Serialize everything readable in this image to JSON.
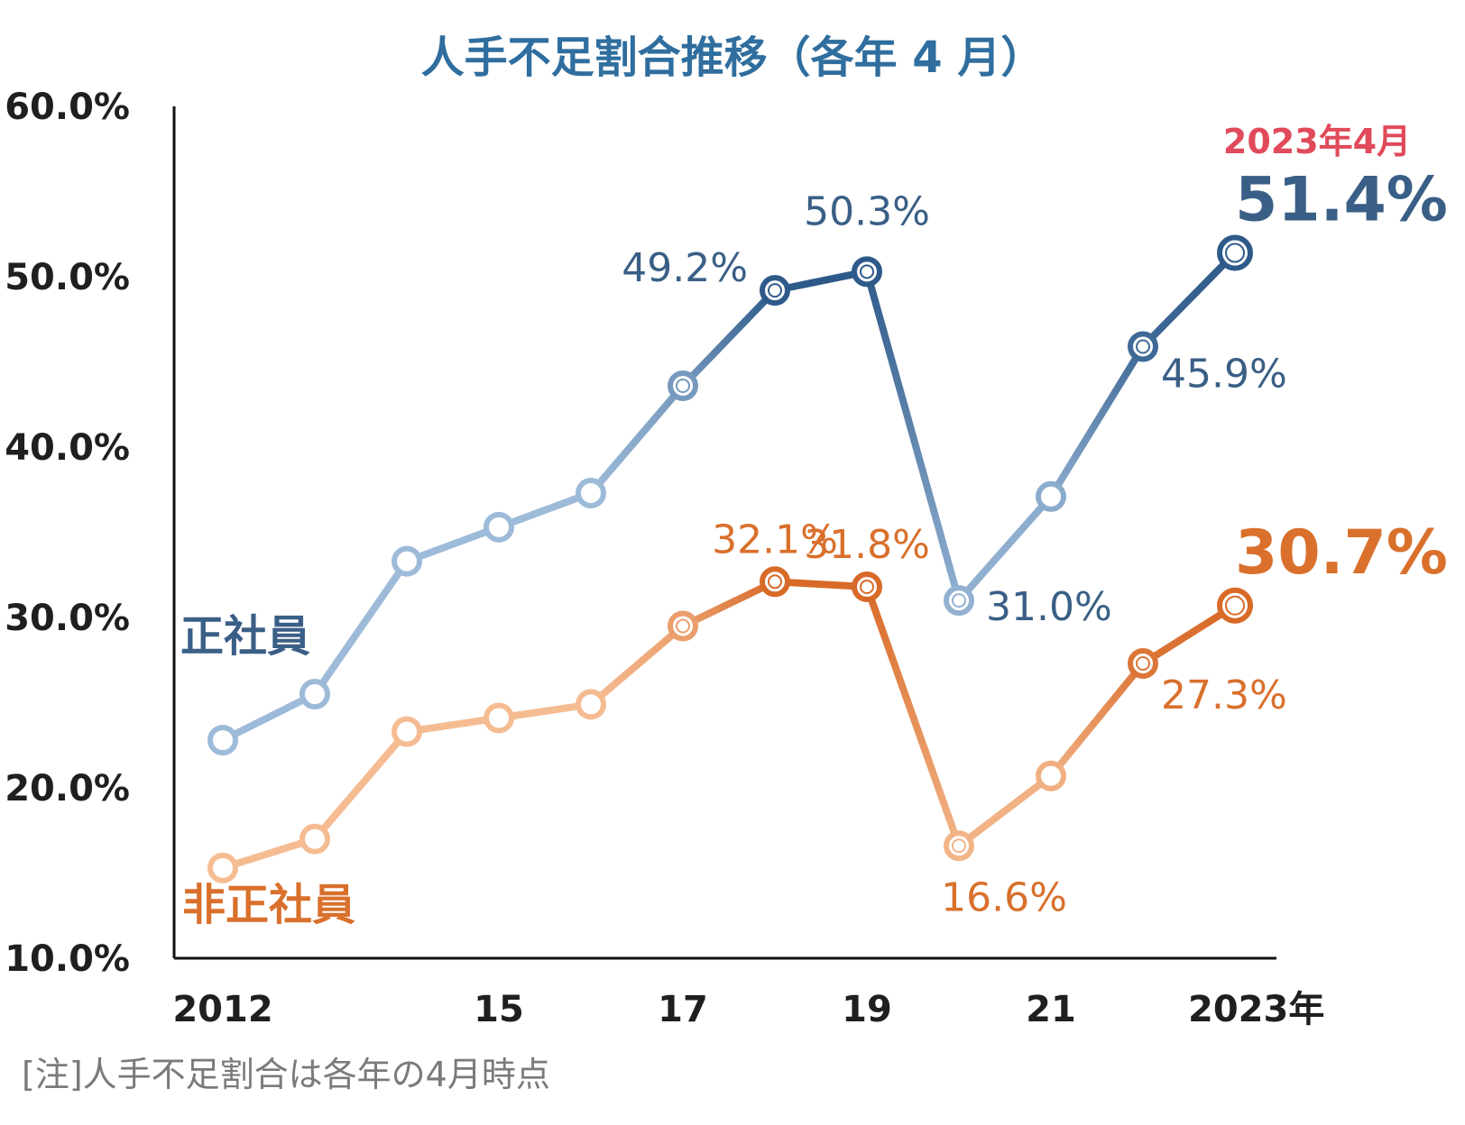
{
  "chart_data": {
    "type": "line",
    "title": "人手不足割合推移（各年 4 月）",
    "note": "[注]人手不足割合は各年の4月時点",
    "ylim": [
      10,
      60
    ],
    "ytick_values": [
      10,
      20,
      30,
      40,
      50,
      60
    ],
    "ytick_labels": [
      "10.0%",
      "20.0%",
      "30.0%",
      "40.0%",
      "50.0%",
      "60.0%"
    ],
    "x": [
      2012,
      2013,
      2014,
      2015,
      2016,
      2017,
      2018,
      2019,
      2020,
      2021,
      2022,
      2023
    ],
    "xtick_values": [
      2012,
      2015,
      2017,
      2019,
      2021,
      2023
    ],
    "xtick_labels": [
      "2012",
      "15",
      "17",
      "19",
      "21",
      "2023年"
    ],
    "highlight_period": "2023年4月",
    "series": [
      {
        "name": "正社員",
        "color_dark": "#2e5a8a",
        "color_light": "#9dbbd9",
        "values": [
          22.8,
          25.5,
          33.3,
          35.3,
          37.3,
          43.6,
          49.2,
          50.3,
          31.0,
          37.1,
          45.9,
          51.4
        ],
        "labels": [
          {
            "index": 6,
            "text": "49.2%"
          },
          {
            "index": 7,
            "text": "50.3%"
          },
          {
            "index": 8,
            "text": "31.0%"
          },
          {
            "index": 10,
            "text": "45.9%"
          },
          {
            "index": 11,
            "text": "51.4%"
          }
        ]
      },
      {
        "name": "非正社員",
        "color_dark": "#d86a28",
        "color_light": "#f5bc92",
        "values": [
          15.3,
          17.0,
          23.3,
          24.1,
          24.9,
          29.5,
          32.1,
          31.8,
          16.6,
          20.7,
          27.3,
          30.7
        ],
        "labels": [
          {
            "index": 6,
            "text": "32.1%"
          },
          {
            "index": 7,
            "text": "31.8%"
          },
          {
            "index": 8,
            "text": "16.6%"
          },
          {
            "index": 10,
            "text": "27.3%"
          },
          {
            "index": 11,
            "text": "30.7%"
          }
        ]
      }
    ],
    "colors": {
      "title": "#2f6e9e",
      "axis": "#111111",
      "highlight": "#e04a5a",
      "blue_label": "#3a5f86",
      "orange_label": "#d9702c"
    }
  }
}
